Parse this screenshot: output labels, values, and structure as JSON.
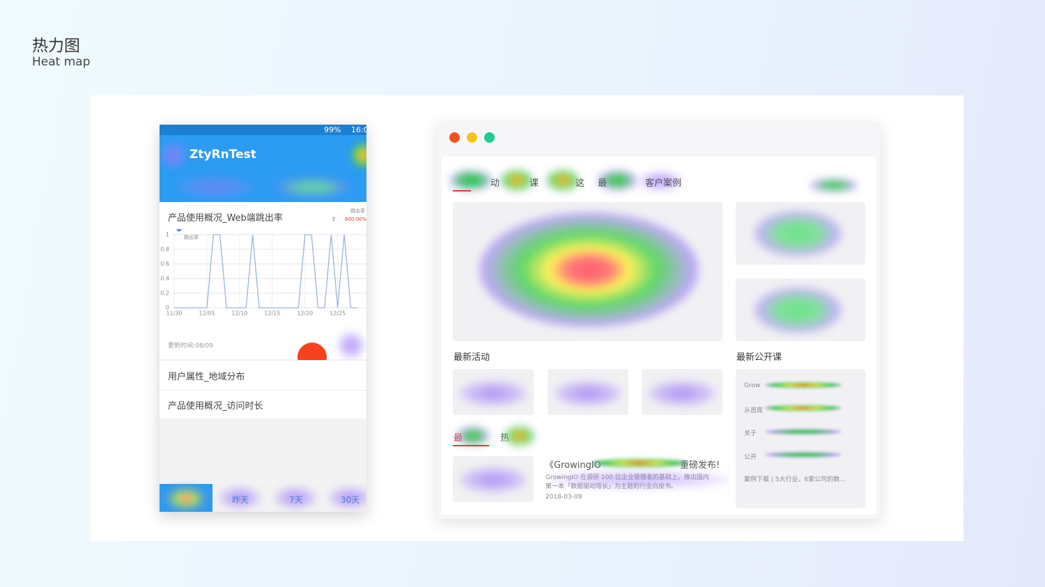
{
  "header": {
    "title": "热力图",
    "subtitle": "Heat map"
  },
  "phone": {
    "status": {
      "battery": "99%",
      "time": "16:0"
    },
    "app_title": "ZtyRnTest",
    "card": {
      "title": "产品使用概况_Web端跳出率",
      "count": "7",
      "metric": "跳出率",
      "rate": "600.00%",
      "chart_data": {
        "type": "line",
        "series": [
          {
            "name": "跳出率",
            "color": "#9db3d6",
            "values": [
              0,
              0,
              0,
              0,
              0,
              0,
              1,
              1,
              0,
              0,
              0,
              0,
              1,
              0,
              0,
              0,
              0,
              0,
              0,
              0,
              1,
              1,
              0,
              0,
              1,
              0,
              1,
              0,
              0
            ]
          }
        ],
        "categories": [
          "11/30",
          null,
          null,
          null,
          null,
          "12/05",
          null,
          null,
          null,
          null,
          "12/10",
          null,
          null,
          null,
          null,
          "12/15",
          null,
          null,
          null,
          null,
          "12/20",
          null,
          null,
          null,
          null,
          "12/25",
          null,
          null,
          null
        ],
        "ylim": [
          0,
          1
        ],
        "yticks": [
          0,
          0.2,
          0.4,
          0.6,
          0.8,
          1
        ],
        "grid": true
      },
      "updated": "更新时间:08/09"
    },
    "list": [
      "用户属性_地域分布",
      "产品使用概况_访问时长"
    ],
    "tabs": [
      "昨天",
      "7天",
      "30天"
    ]
  },
  "browser": {
    "nav": [
      "动",
      "课",
      "这",
      "最",
      "客户案例"
    ],
    "section1": "最新活动",
    "section2": "最新公开课",
    "tabs2": [
      "最",
      "热"
    ],
    "article": {
      "title": "《GrowingIO",
      "title_end": "重磅发布!",
      "line1": "GrowingIO 在调研 100 位企业管理者的基础上，推出国内",
      "line2": "第一本「数据驱动增长」为主题的行业白皮书。",
      "date": "2018-03-09"
    },
    "courses": [
      "Grow",
      "从首席",
      "关于",
      "公开",
      "案例下载 | 5大行业，6家公司的数..."
    ]
  }
}
